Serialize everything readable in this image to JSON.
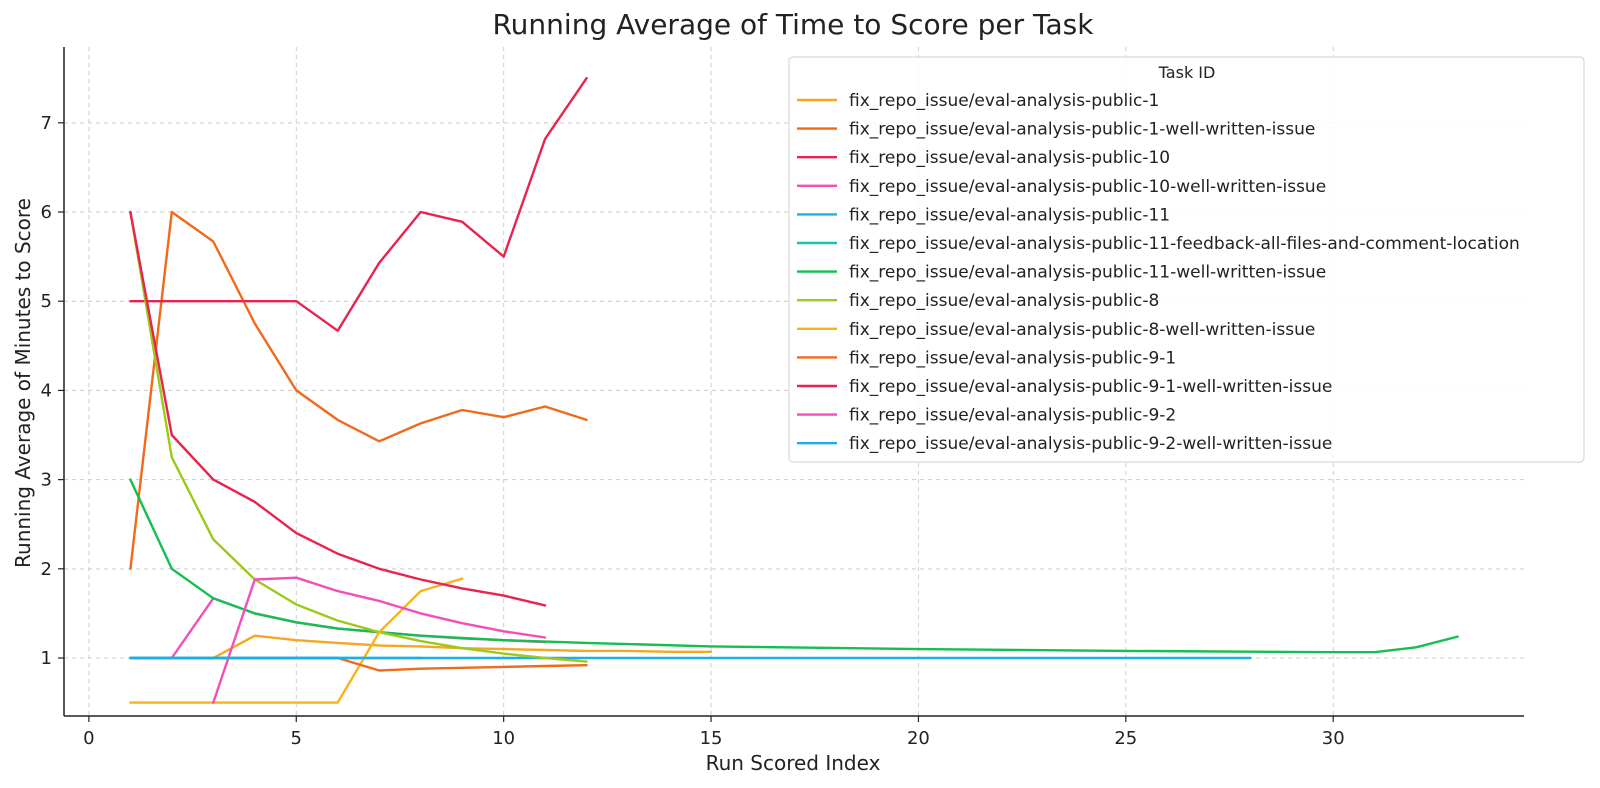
{
  "chart_data": {
    "type": "line",
    "title": "Running Average of Time to Score per Task",
    "xlabel": "Run Scored Index",
    "ylabel": "Running Average of Minutes to Score",
    "xlim": [
      -0.6,
      34.6
    ],
    "ylim": [
      0.35,
      7.85
    ],
    "xticks": [
      0,
      5,
      10,
      15,
      20,
      25,
      30
    ],
    "yticks": [
      1,
      2,
      3,
      4,
      5,
      6,
      7
    ],
    "grid": true,
    "legend": {
      "title": "Task ID",
      "placement": "top-right"
    },
    "series": [
      {
        "name": "fix_repo_issue/eval-analysis-public-1",
        "color": "#f5a623",
        "x": [
          1,
          2,
          3,
          4,
          5,
          6,
          7,
          8,
          9,
          10,
          11,
          12,
          13,
          14,
          15
        ],
        "y": [
          1.0,
          1.0,
          1.0,
          1.25,
          1.2,
          1.17,
          1.14,
          1.13,
          1.11,
          1.1,
          1.09,
          1.08,
          1.08,
          1.07,
          1.07
        ]
      },
      {
        "name": "fix_repo_issue/eval-analysis-public-1-well-written-issue",
        "color": "#f06a1c",
        "x": [
          1,
          2,
          3,
          4,
          5,
          6,
          7,
          8,
          9,
          10,
          11,
          12
        ],
        "y": [
          2.0,
          6.0,
          5.67,
          4.75,
          4.0,
          3.67,
          3.43,
          3.63,
          3.78,
          3.7,
          3.82,
          3.67
        ]
      },
      {
        "name": "fix_repo_issue/eval-analysis-public-10",
        "color": "#e8244e",
        "x": [
          1,
          2,
          3,
          4,
          5,
          6,
          7,
          8,
          9,
          10,
          11,
          12
        ],
        "y": [
          5.0,
          5.0,
          5.0,
          5.0,
          5.0,
          4.67,
          5.43,
          6.0,
          5.89,
          5.5,
          6.82,
          7.5
        ]
      },
      {
        "name": "fix_repo_issue/eval-analysis-public-10-well-written-issue",
        "color": "#f24fb8",
        "x": [
          1,
          2,
          3,
          4,
          5,
          6,
          7,
          8,
          9,
          10,
          11
        ],
        "y": [
          1.0,
          1.0,
          1.67,
          1.5,
          1.4,
          1.33,
          1.29,
          1.25,
          1.22,
          1.2,
          1.18
        ]
      },
      {
        "name": "fix_repo_issue/eval-analysis-public-11",
        "color": "#1ab0e6",
        "x": [
          1,
          5,
          10,
          15,
          20,
          25,
          28
        ],
        "y": [
          1.0,
          1.0,
          1.0,
          1.0,
          1.0,
          1.0,
          1.0
        ]
      },
      {
        "name": "fix_repo_issue/eval-analysis-public-11-feedback-all-files-and-comment-location",
        "color": "#19c2b0",
        "x": [
          1,
          2,
          3,
          4,
          5,
          6
        ],
        "y": [
          1.0,
          1.0,
          1.0,
          1.0,
          1.0,
          1.0
        ]
      },
      {
        "name": "fix_repo_issue/eval-analysis-public-11-well-written-issue",
        "color": "#12bf4f",
        "x": [
          1,
          2,
          3,
          4,
          5,
          6,
          8,
          10,
          12,
          15,
          20,
          25,
          30,
          31,
          32,
          33
        ],
        "y": [
          3.0,
          2.0,
          1.67,
          1.5,
          1.4,
          1.33,
          1.25,
          1.2,
          1.17,
          1.13,
          1.1,
          1.08,
          1.065,
          1.065,
          1.12,
          1.24
        ]
      },
      {
        "name": "fix_repo_issue/eval-analysis-public-8",
        "color": "#9cc91a",
        "x": [
          1,
          2,
          3,
          4,
          5,
          6,
          7,
          8,
          9,
          10,
          11,
          12
        ],
        "y": [
          6.0,
          3.25,
          2.33,
          1.88,
          1.6,
          1.42,
          1.29,
          1.19,
          1.11,
          1.05,
          1.0,
          0.96
        ]
      },
      {
        "name": "fix_repo_issue/eval-analysis-public-8-well-written-issue",
        "color": "#f9b21b",
        "x": [
          1,
          2,
          3,
          4,
          5,
          6,
          7,
          8,
          9
        ],
        "y": [
          0.5,
          0.5,
          0.5,
          0.5,
          0.5,
          0.5,
          1.29,
          1.75,
          1.89
        ]
      },
      {
        "name": "fix_repo_issue/eval-analysis-public-9-1",
        "color": "#f06a1c",
        "x": [
          6,
          7,
          8,
          9,
          10,
          11,
          12
        ],
        "y": [
          1.0,
          0.86,
          0.88,
          0.89,
          0.9,
          0.91,
          0.92
        ]
      },
      {
        "name": "fix_repo_issue/eval-analysis-public-9-1-well-written-issue",
        "color": "#e8244e",
        "x": [
          1,
          2,
          3,
          4,
          5,
          6,
          7,
          8,
          9,
          10,
          11
        ],
        "y": [
          6.0,
          3.5,
          3.0,
          2.75,
          2.4,
          2.17,
          2.0,
          1.88,
          1.78,
          1.7,
          1.59
        ]
      },
      {
        "name": "fix_repo_issue/eval-analysis-public-9-2",
        "color": "#f24fb8",
        "x": [
          3,
          4,
          5,
          6,
          7,
          8,
          9,
          10,
          11
        ],
        "y": [
          0.5,
          1.88,
          1.9,
          1.75,
          1.64,
          1.5,
          1.39,
          1.3,
          1.23
        ]
      },
      {
        "name": "fix_repo_issue/eval-analysis-public-9-2-well-written-issue",
        "color": "#1ab0e6",
        "x": [
          1,
          2,
          3,
          4,
          5,
          6,
          7,
          8
        ],
        "y": [
          1.0,
          1.0,
          1.0,
          1.0,
          1.0,
          1.0,
          1.0,
          1.0
        ]
      }
    ]
  }
}
